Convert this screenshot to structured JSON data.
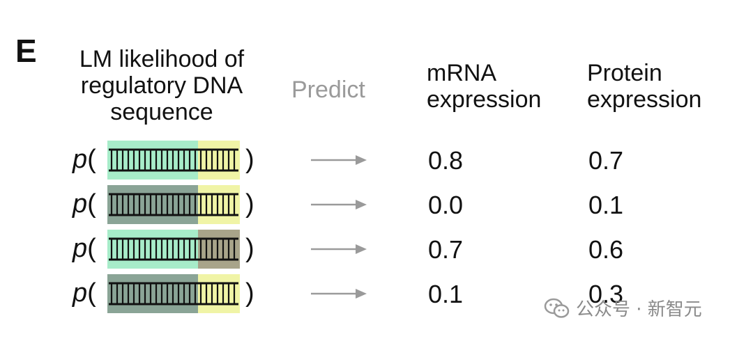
{
  "panel_label": "E",
  "headers": {
    "lm": "LM likelihood of\nregulatory DNA\nsequence",
    "predict": "Predict",
    "mrna": "mRNA\nexpression",
    "protein": "Protein\nexpression"
  },
  "p_label": "p",
  "open_paren": "(",
  "close_paren": ")",
  "colors": {
    "left_active": "#a7ecc9",
    "left_inactive": "#8aa496",
    "right_active": "#f0f4a6",
    "right_inactive": "#a8a48a",
    "arrow": "#9a9a9a"
  },
  "rows": [
    {
      "left_region": "active",
      "right_region": "active",
      "mrna": "0.8",
      "protein": "0.7"
    },
    {
      "left_region": "inactive",
      "right_region": "active",
      "mrna": "0.0",
      "protein": "0.1"
    },
    {
      "left_region": "active",
      "right_region": "inactive",
      "mrna": "0.7",
      "protein": "0.6"
    },
    {
      "left_region": "inactive",
      "right_region": "active",
      "mrna": "0.1",
      "protein": "0.3"
    }
  ],
  "watermark": {
    "icon": "wechat-icon",
    "text": "公众号 · 新智元"
  }
}
